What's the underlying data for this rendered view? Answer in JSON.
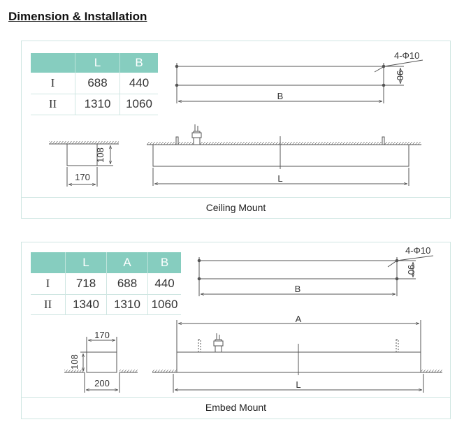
{
  "title": "Dimension & Installation",
  "colors": {
    "table_header": "#86cdbf",
    "panel_border": "#cfe6e2",
    "line": "#555555"
  },
  "ceiling": {
    "caption": "Ceiling Mount",
    "table": {
      "headers": [
        "",
        "L",
        "B"
      ],
      "rows": [
        [
          "I",
          "688",
          "440"
        ],
        [
          "II",
          "1310",
          "1060"
        ]
      ]
    },
    "labels": {
      "holes": "4-Φ10",
      "hole_spacing": "90",
      "b": "B",
      "l": "L",
      "height": "108",
      "width": "170"
    }
  },
  "embed": {
    "caption": "Embed Mount",
    "table": {
      "headers": [
        "",
        "L",
        "A",
        "B"
      ],
      "rows": [
        [
          "I",
          "718",
          "688",
          "440"
        ],
        [
          "II",
          "1340",
          "1310",
          "1060"
        ]
      ]
    },
    "labels": {
      "holes": "4-Φ10",
      "hole_spacing": "90",
      "b": "B",
      "a": "A",
      "l": "L",
      "height": "108",
      "width_top": "170",
      "width_bottom": "200"
    }
  }
}
